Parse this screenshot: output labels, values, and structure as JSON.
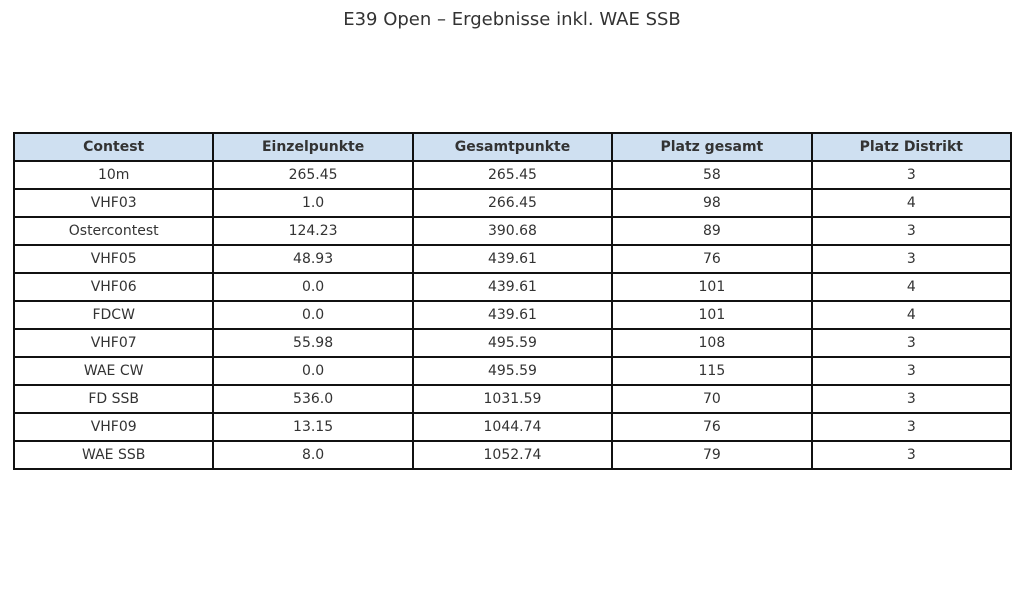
{
  "title": "E39 Open – Ergebnisse inkl. WAE SSB",
  "table": {
    "columns": [
      "Contest",
      "Einzelpunkte",
      "Gesamtpunkte",
      "Platz gesamt",
      "Platz Distrikt"
    ],
    "rows": [
      [
        "10m",
        "265.45",
        "265.45",
        "58",
        "3"
      ],
      [
        "VHF03",
        "1.0",
        "266.45",
        "98",
        "4"
      ],
      [
        "Ostercontest",
        "124.23",
        "390.68",
        "89",
        "3"
      ],
      [
        "VHF05",
        "48.93",
        "439.61",
        "76",
        "3"
      ],
      [
        "VHF06",
        "0.0",
        "439.61",
        "101",
        "4"
      ],
      [
        "FDCW",
        "0.0",
        "439.61",
        "101",
        "4"
      ],
      [
        "VHF07",
        "55.98",
        "495.59",
        "108",
        "3"
      ],
      [
        "WAE CW",
        "0.0",
        "495.59",
        "115",
        "3"
      ],
      [
        "FD SSB",
        "536.0",
        "1031.59",
        "70",
        "3"
      ],
      [
        "VHF09",
        "13.15",
        "1044.74",
        "76",
        "3"
      ],
      [
        "WAE SSB",
        "8.0",
        "1052.74",
        "79",
        "3"
      ]
    ]
  }
}
